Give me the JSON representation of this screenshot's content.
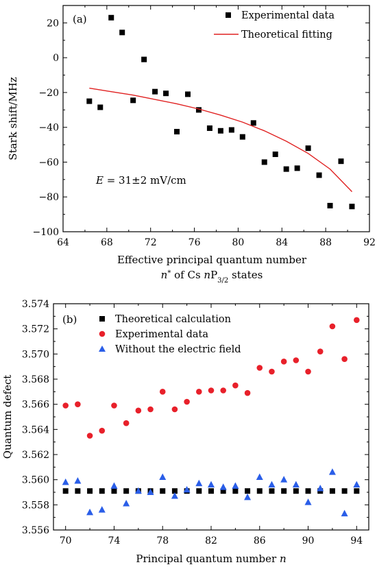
{
  "chart_data": [
    {
      "type": "scatter",
      "panel_label": "(a)",
      "xlabel_line1": "Effective principal quantum number",
      "xlabel_line2_pre": "n",
      "xlabel_line2_mid": " of Cs ",
      "xlabel_line2_n": "n",
      "xlabel_line2_post": "P",
      "xlabel_sub": "3/2",
      "xlabel_tail": " states",
      "ylabel": "Stark shift/MHz",
      "annotation": "E = 31±2 mV/cm",
      "xlim": [
        64,
        92
      ],
      "ylim": [
        -100,
        30
      ],
      "xticks": [
        64,
        68,
        72,
        76,
        80,
        84,
        88,
        92
      ],
      "yticks": [
        -100,
        -80,
        -60,
        -40,
        -20,
        0,
        20
      ],
      "ytick_labels": [
        "−100",
        "−80",
        "−60",
        "−40",
        "−20",
        "0",
        "20"
      ],
      "legend_position": "top-right",
      "series": [
        {
          "name": "Experimental data",
          "marker": "square",
          "color": "#000000",
          "x": [
            66.4,
            67.4,
            68.4,
            69.4,
            70.4,
            71.4,
            72.4,
            73.4,
            74.4,
            75.4,
            76.4,
            77.4,
            78.4,
            79.4,
            80.4,
            81.4,
            82.4,
            83.4,
            84.4,
            85.4,
            86.4,
            87.4,
            88.4,
            89.4,
            90.4
          ],
          "y": [
            -25,
            -28.5,
            23,
            14.5,
            -24.5,
            -1,
            -19.5,
            -20.5,
            -42.5,
            -21,
            -30,
            -40.5,
            -42,
            -41.5,
            -45.5,
            -37.5,
            -60,
            -55.5,
            -64,
            -63.5,
            -52,
            -67.5,
            -85,
            -59.5,
            -85.5
          ]
        },
        {
          "name": "Theoretical fitting",
          "marker": "line",
          "color": "#e02020",
          "x": [
            66.4,
            68.4,
            70.4,
            72.4,
            74.4,
            76.4,
            78.4,
            80.4,
            82.4,
            84.4,
            86.4,
            88.4,
            90.4
          ],
          "y": [
            -17.5,
            -19.5,
            -21.5,
            -24,
            -26.5,
            -29.5,
            -33,
            -37,
            -42,
            -48,
            -55,
            -64,
            -77
          ]
        }
      ]
    },
    {
      "type": "scatter",
      "panel_label": "(b)",
      "xlabel": "Principal quantum number ",
      "xlabel_italic": "n",
      "ylabel": "Quantum defect",
      "xlim": [
        69,
        95
      ],
      "ylim": [
        3.556,
        3.574
      ],
      "xticks": [
        70,
        74,
        78,
        82,
        86,
        90,
        94
      ],
      "yticks": [
        3.556,
        3.558,
        3.56,
        3.562,
        3.564,
        3.566,
        3.568,
        3.57,
        3.572,
        3.574
      ],
      "ytick_labels": [
        "3.556",
        "3.558",
        "3.560",
        "3.562",
        "3.564",
        "3.566",
        "3.568",
        "3.570",
        "3.572",
        "3.574"
      ],
      "legend_position": "top-left",
      "series": [
        {
          "name": "Theoretical calculation",
          "marker": "square",
          "color": "#000000",
          "x": [
            70,
            71,
            72,
            73,
            74,
            75,
            76,
            77,
            78,
            79,
            80,
            81,
            82,
            83,
            84,
            85,
            86,
            87,
            88,
            89,
            90,
            91,
            92,
            93,
            94
          ],
          "y": [
            3.5591,
            3.5591,
            3.5591,
            3.5591,
            3.5591,
            3.5591,
            3.5591,
            3.5591,
            3.5591,
            3.5591,
            3.5591,
            3.5591,
            3.5591,
            3.5591,
            3.5591,
            3.5591,
            3.5591,
            3.5591,
            3.5591,
            3.5591,
            3.5591,
            3.5591,
            3.5591,
            3.5591,
            3.5591
          ]
        },
        {
          "name": "Experimental data",
          "marker": "circle",
          "color": "#e8202a",
          "x": [
            70,
            71,
            72,
            73,
            74,
            75,
            76,
            77,
            78,
            79,
            80,
            81,
            82,
            83,
            84,
            85,
            86,
            87,
            88,
            89,
            90,
            91,
            92,
            93,
            94
          ],
          "y": [
            3.5659,
            3.566,
            3.5635,
            3.5639,
            3.5659,
            3.5645,
            3.5655,
            3.5656,
            3.567,
            3.5656,
            3.5662,
            3.567,
            3.5671,
            3.5671,
            3.5675,
            3.5669,
            3.5689,
            3.5686,
            3.5694,
            3.5695,
            3.5686,
            3.5702,
            3.5722,
            3.5696,
            3.5727
          ]
        },
        {
          "name": "Without the electric field",
          "marker": "triangle",
          "color": "#2a5ee8",
          "x": [
            70,
            71,
            72,
            73,
            74,
            75,
            76,
            77,
            78,
            79,
            80,
            81,
            82,
            83,
            84,
            85,
            86,
            87,
            88,
            89,
            90,
            91,
            92,
            93,
            94
          ],
          "y": [
            3.5598,
            3.5599,
            3.5574,
            3.5576,
            3.5595,
            3.5581,
            3.5591,
            3.559,
            3.5602,
            3.5587,
            3.5592,
            3.5597,
            3.5596,
            3.5594,
            3.5595,
            3.5586,
            3.5602,
            3.5596,
            3.56,
            3.5596,
            3.5582,
            3.5593,
            3.5606,
            3.5573,
            3.5596
          ]
        }
      ]
    }
  ]
}
